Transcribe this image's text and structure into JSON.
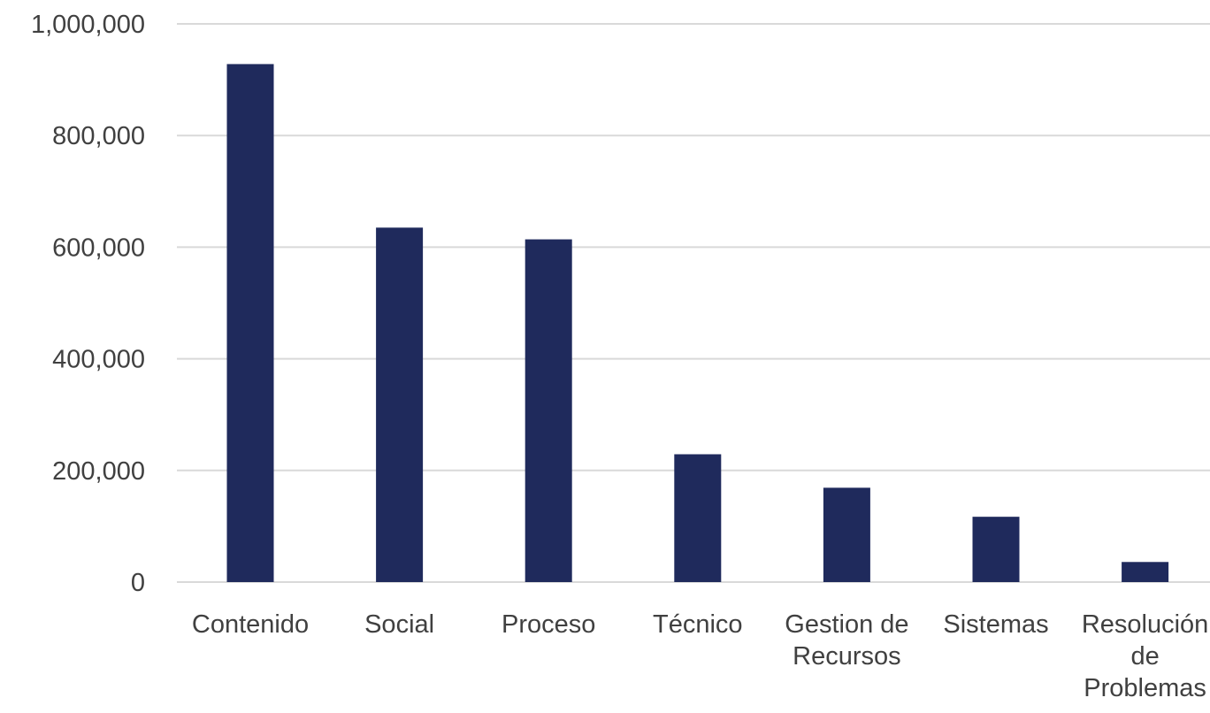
{
  "chart_data": {
    "type": "bar",
    "categories": [
      [
        "Contenido"
      ],
      [
        "Social"
      ],
      [
        "Proceso"
      ],
      [
        "Técnico"
      ],
      [
        "Gestion de",
        "Recursos"
      ],
      [
        "Sistemas"
      ],
      [
        "Resolución",
        "de",
        "Problemas"
      ]
    ],
    "values": [
      928000,
      635000,
      614000,
      229000,
      169000,
      117000,
      36000
    ],
    "title": "",
    "xlabel": "",
    "ylabel": "",
    "ylim": [
      0,
      1000000
    ],
    "yticks": [
      {
        "value": 0,
        "label": "0"
      },
      {
        "value": 200000,
        "label": "200,000"
      },
      {
        "value": 400000,
        "label": "400,000"
      },
      {
        "value": 600000,
        "label": "600,000"
      },
      {
        "value": 800000,
        "label": "800,000"
      },
      {
        "value": 1000000,
        "label": "1,000,000"
      }
    ],
    "grid": true,
    "legend": "none",
    "bar_color": "#1f2a5c",
    "grid_color": "#d9d9d9",
    "text_color": "#404040"
  }
}
